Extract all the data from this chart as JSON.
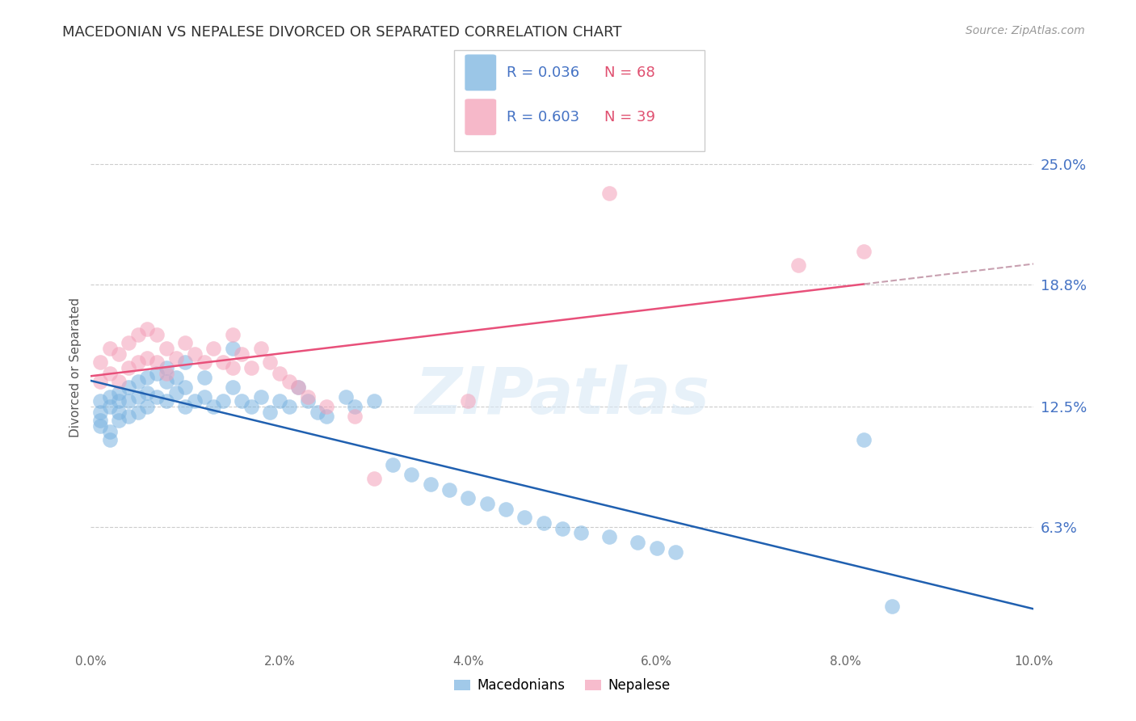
{
  "title": "MACEDONIAN VS NEPALESE DIVORCED OR SEPARATED CORRELATION CHART",
  "source": "Source: ZipAtlas.com",
  "xlabel_ticks": [
    "0.0%",
    "2.0%",
    "4.0%",
    "6.0%",
    "8.0%",
    "10.0%"
  ],
  "xlabel_vals": [
    0.0,
    0.02,
    0.04,
    0.06,
    0.08,
    0.1
  ],
  "ylabel_ticks": [
    "6.3%",
    "12.5%",
    "18.8%",
    "25.0%"
  ],
  "ylabel_vals": [
    0.063,
    0.125,
    0.188,
    0.25
  ],
  "watermark": "ZIPatlas",
  "legend_label1": "Macedonians",
  "legend_label2": "Nepalese",
  "mac_color": "#7ab3e0",
  "nep_color": "#f4a0b8",
  "mac_line_color": "#2060b0",
  "nep_line_color": "#e8507a",
  "xlim": [
    0.0,
    0.1
  ],
  "ylim": [
    0.0,
    0.29
  ],
  "macedonian_x": [
    0.001,
    0.001,
    0.001,
    0.001,
    0.002,
    0.002,
    0.002,
    0.002,
    0.003,
    0.003,
    0.003,
    0.003,
    0.004,
    0.004,
    0.004,
    0.005,
    0.005,
    0.005,
    0.006,
    0.006,
    0.006,
    0.007,
    0.007,
    0.008,
    0.008,
    0.008,
    0.009,
    0.009,
    0.01,
    0.01,
    0.01,
    0.011,
    0.012,
    0.012,
    0.013,
    0.014,
    0.015,
    0.015,
    0.016,
    0.017,
    0.018,
    0.019,
    0.02,
    0.021,
    0.022,
    0.023,
    0.024,
    0.025,
    0.027,
    0.028,
    0.03,
    0.032,
    0.034,
    0.036,
    0.038,
    0.04,
    0.042,
    0.044,
    0.046,
    0.048,
    0.05,
    0.052,
    0.055,
    0.058,
    0.06,
    0.062,
    0.082,
    0.085
  ],
  "macedonian_y": [
    0.128,
    0.122,
    0.118,
    0.115,
    0.13,
    0.125,
    0.112,
    0.108,
    0.132,
    0.128,
    0.122,
    0.118,
    0.135,
    0.128,
    0.12,
    0.138,
    0.13,
    0.122,
    0.14,
    0.132,
    0.125,
    0.142,
    0.13,
    0.145,
    0.138,
    0.128,
    0.14,
    0.132,
    0.148,
    0.135,
    0.125,
    0.128,
    0.14,
    0.13,
    0.125,
    0.128,
    0.155,
    0.135,
    0.128,
    0.125,
    0.13,
    0.122,
    0.128,
    0.125,
    0.135,
    0.128,
    0.122,
    0.12,
    0.13,
    0.125,
    0.128,
    0.095,
    0.09,
    0.085,
    0.082,
    0.078,
    0.075,
    0.072,
    0.068,
    0.065,
    0.062,
    0.06,
    0.058,
    0.055,
    0.052,
    0.05,
    0.108,
    0.022
  ],
  "nepalese_x": [
    0.001,
    0.001,
    0.002,
    0.002,
    0.003,
    0.003,
    0.004,
    0.004,
    0.005,
    0.005,
    0.006,
    0.006,
    0.007,
    0.007,
    0.008,
    0.008,
    0.009,
    0.01,
    0.011,
    0.012,
    0.013,
    0.014,
    0.015,
    0.015,
    0.016,
    0.017,
    0.018,
    0.019,
    0.02,
    0.021,
    0.022,
    0.023,
    0.025,
    0.028,
    0.03,
    0.04,
    0.055,
    0.075,
    0.082
  ],
  "nepalese_y": [
    0.148,
    0.138,
    0.155,
    0.142,
    0.152,
    0.138,
    0.158,
    0.145,
    0.162,
    0.148,
    0.165,
    0.15,
    0.162,
    0.148,
    0.155,
    0.142,
    0.15,
    0.158,
    0.152,
    0.148,
    0.155,
    0.148,
    0.162,
    0.145,
    0.152,
    0.145,
    0.155,
    0.148,
    0.142,
    0.138,
    0.135,
    0.13,
    0.125,
    0.12,
    0.088,
    0.128,
    0.235,
    0.198,
    0.205
  ]
}
